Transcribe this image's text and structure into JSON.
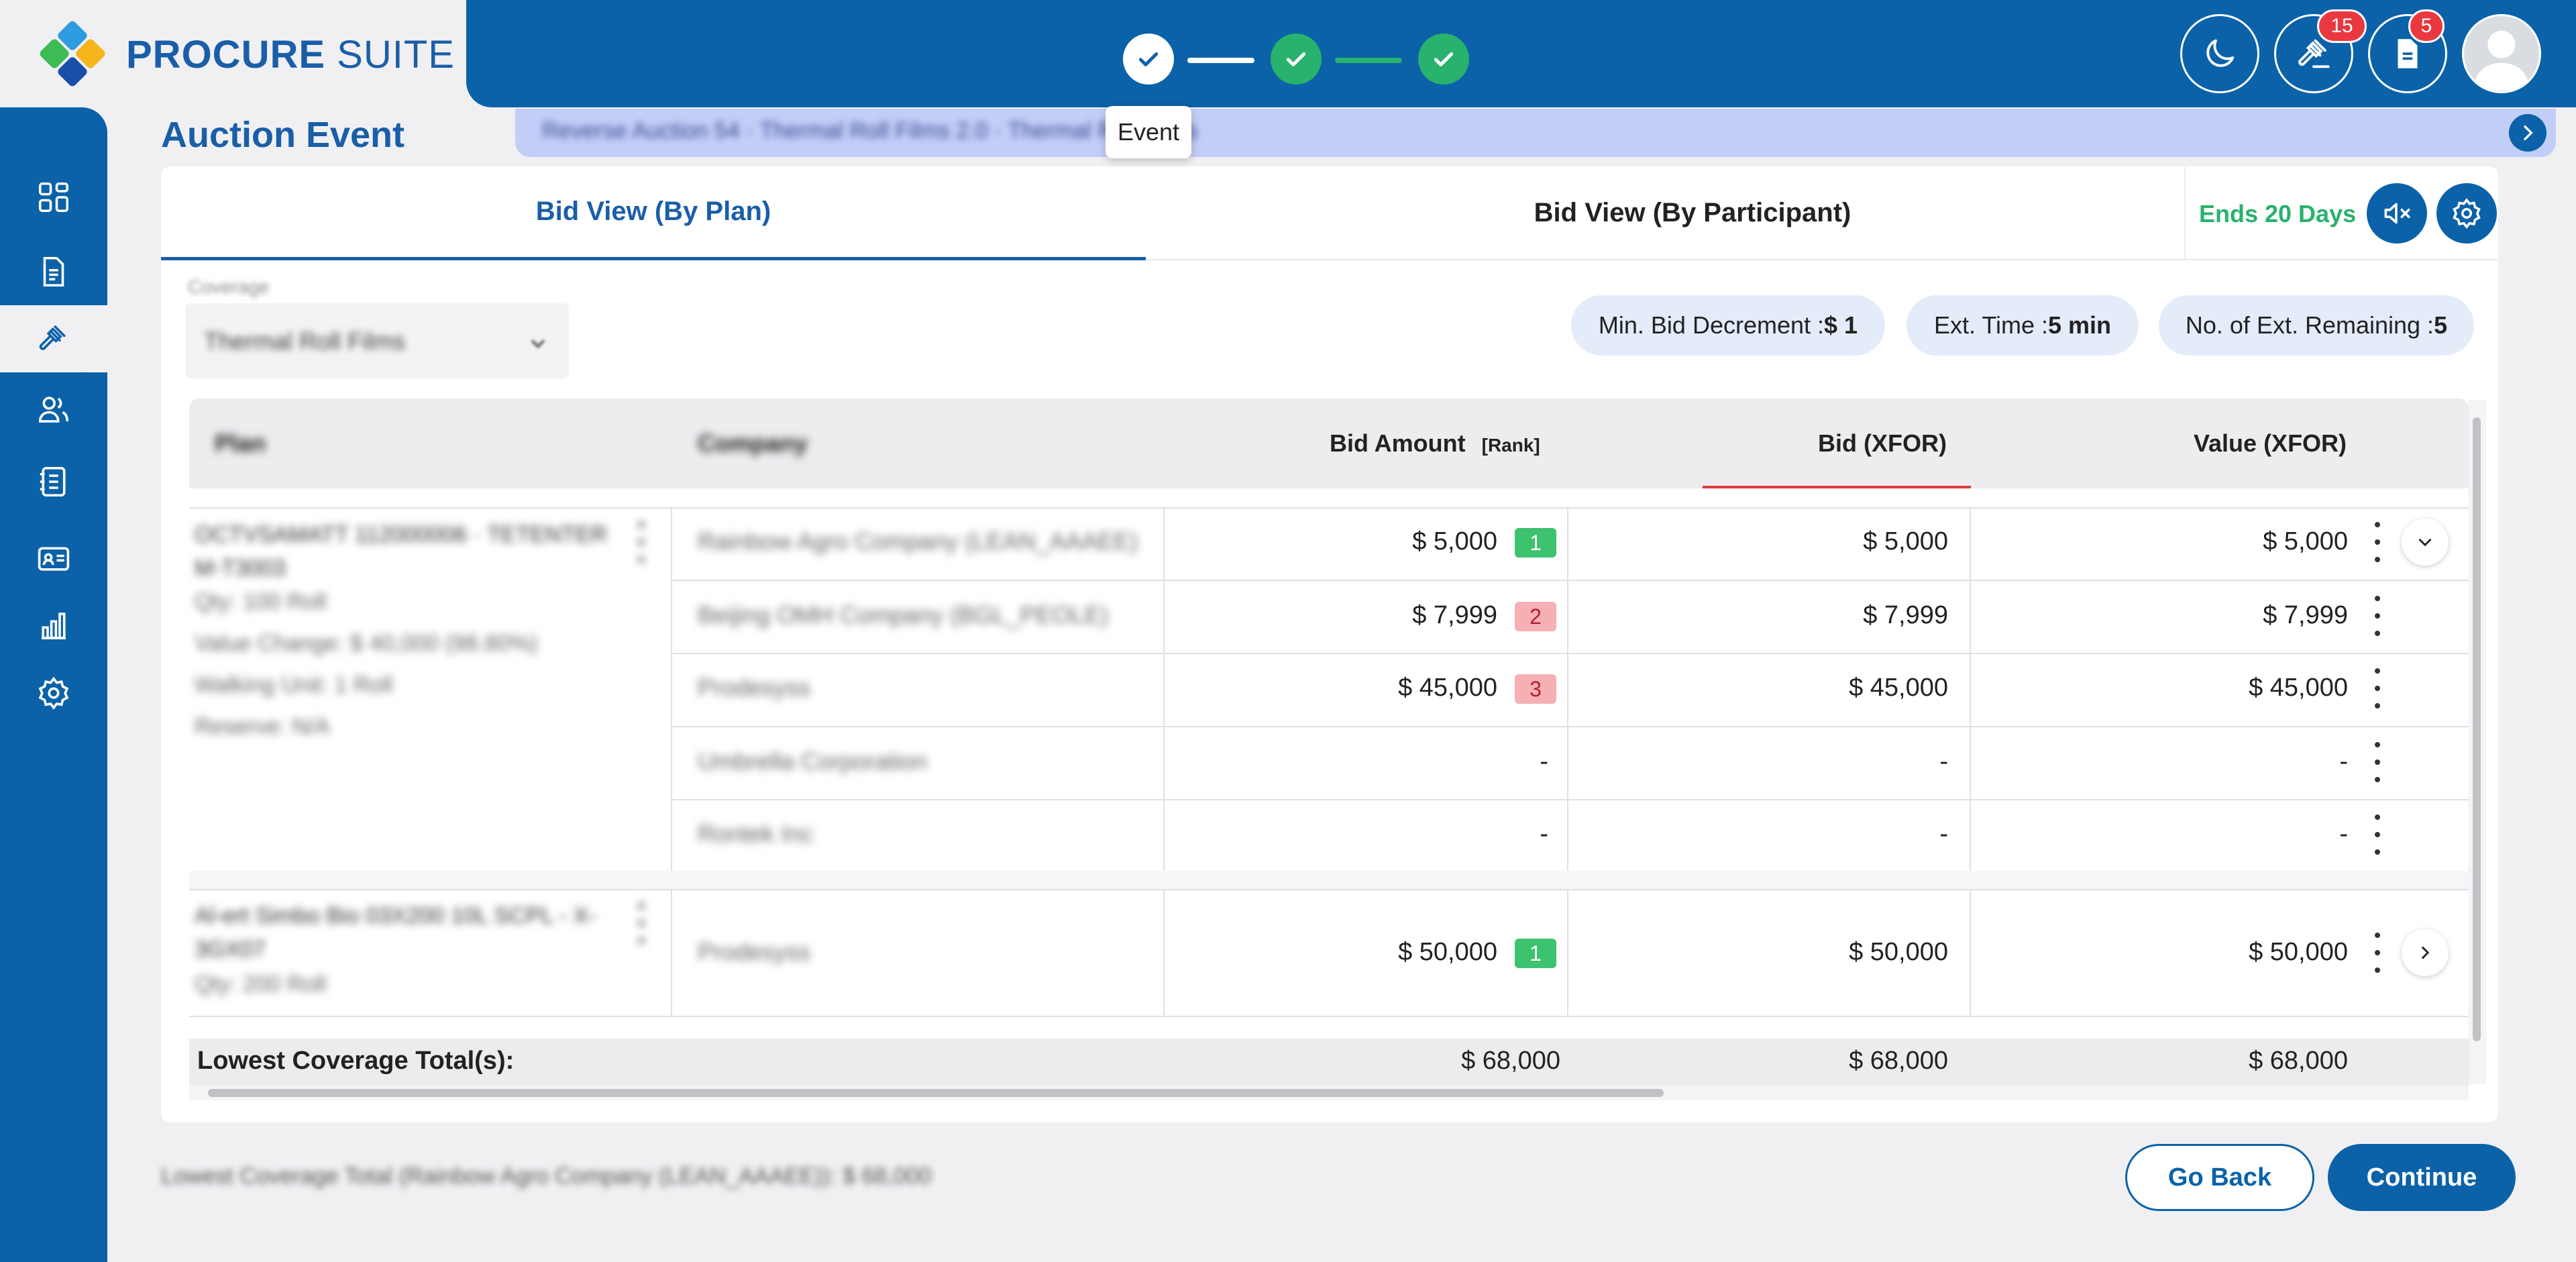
{
  "brand": {
    "name_bold": "PROCURE",
    "name_light": " SUITE"
  },
  "stepper": {
    "tooltip": "Event",
    "steps": [
      "Event",
      "",
      ""
    ]
  },
  "header": {
    "auction_badge": "15",
    "docs_badge": "5"
  },
  "sidebar": {
    "items": [
      "dashboard-icon",
      "document-icon",
      "gavel-icon",
      "users-icon",
      "notebook-icon",
      "id-card-icon",
      "chart-icon",
      "gear-icon"
    ]
  },
  "page": {
    "title": "Auction Event",
    "ticker": "Reverse Auction 54 · Thermal Roll Films 2.0 · Thermal Roll Films"
  },
  "tabs": {
    "by_plan": "Bid View (By Plan)",
    "by_participant": "Bid View (By Participant)"
  },
  "status": {
    "ends": "Ends 20 Days"
  },
  "coverage": {
    "label": "Coverage",
    "value": "Thermal Roll Films"
  },
  "chips": {
    "min_bid_label": "Min. Bid Decrement : ",
    "min_bid_value": "$ 1",
    "ext_time_label": "Ext. Time : ",
    "ext_time_value": "5 min",
    "ext_rem_label": "No. of Ext. Remaining : ",
    "ext_rem_value": "5"
  },
  "table": {
    "headers": {
      "plan": "Plan",
      "company": "Company",
      "bid_amount": "Bid Amount",
      "rank": "[Rank]",
      "bid_xfor": "Bid (XFOR)",
      "value_xfor": "Value (XFOR)"
    },
    "plan1": {
      "name": "OCTVSAMATT 112000006 · TETENTER M-T3003",
      "lines": [
        "Qty: 100 Roll",
        "Value Change: $ 40,000 (98.80%)",
        "Walking Unit: 1 Roll",
        "Reserve: N/A"
      ]
    },
    "plan1_rows": [
      {
        "company": "Rainbow Agro Company (LEAN_AAAEE)",
        "bid": "$ 5,000",
        "rank": "1",
        "bid_xfor": "$ 5,000",
        "value_xfor": "$ 5,000"
      },
      {
        "company": "Beijing OMH Company (BGL_PEOLE)",
        "bid": "$ 7,999",
        "rank": "2",
        "bid_xfor": "$ 7,999",
        "value_xfor": "$ 7,999"
      },
      {
        "company": "Prodesyss",
        "bid": "$ 45,000",
        "rank": "3",
        "bid_xfor": "$ 45,000",
        "value_xfor": "$ 45,000"
      },
      {
        "company": "Umbrella Corporation",
        "bid": "-",
        "rank": "",
        "bid_xfor": "-",
        "value_xfor": "-"
      },
      {
        "company": "Rontek Inc",
        "bid": "-",
        "rank": "",
        "bid_xfor": "-",
        "value_xfor": "-"
      }
    ],
    "plan2": {
      "name": "Al-ert Simbo Bio 03X200 10L SCPL - X-3GX07",
      "lines": [
        "Qty: 200 Roll"
      ]
    },
    "plan2_rows": [
      {
        "company": "Prodesyss",
        "bid": "$ 50,000",
        "rank": "1",
        "bid_xfor": "$ 50,000",
        "value_xfor": "$ 50,000"
      }
    ],
    "totals": {
      "label": "Lowest Coverage Total(s):",
      "bid": "$ 68,000",
      "bid_xfor": "$ 68,000",
      "value_xfor": "$ 68,000"
    }
  },
  "footer": {
    "note": "Lowest Coverage Total (Rainbow Agro Company (LEAN_AAAEE)): $ 68,000",
    "go_back": "Go Back",
    "continue": "Continue"
  },
  "colors": {
    "primary": "#0b62a8",
    "success": "#3dc26f",
    "danger": "#e9383f",
    "ticker_bg": "#c3cef8"
  }
}
